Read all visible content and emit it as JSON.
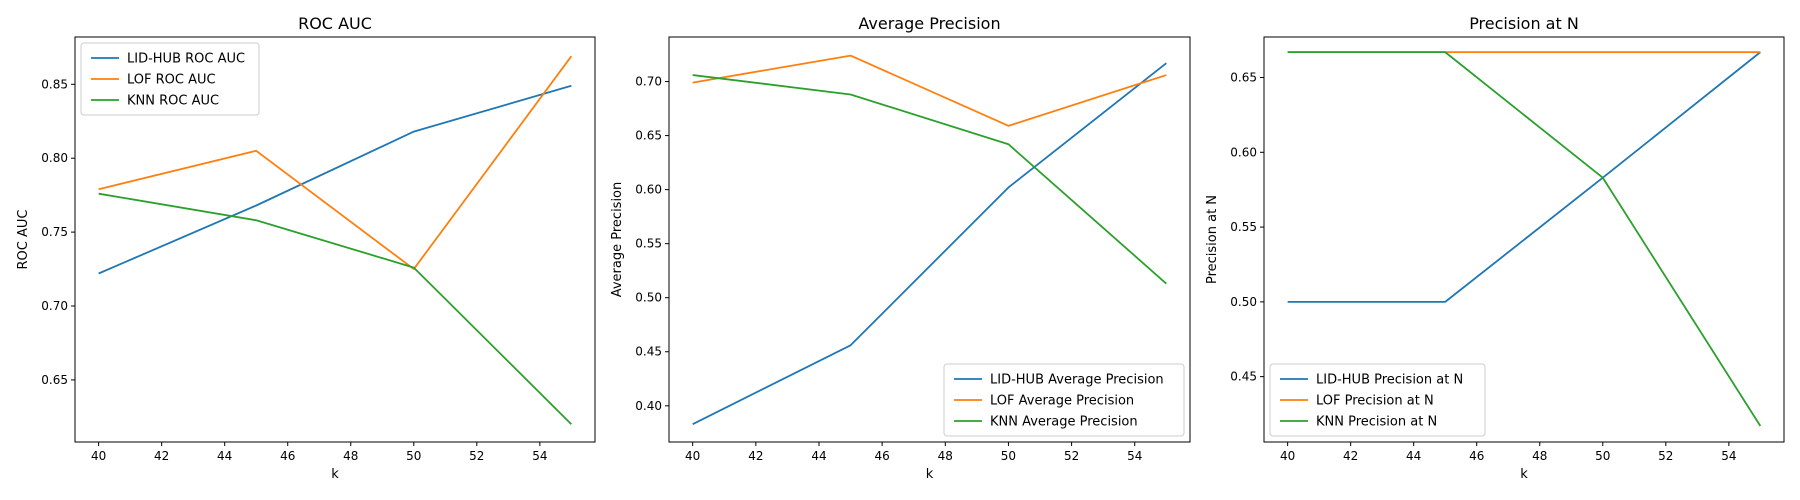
{
  "colors": {
    "blue": "#1f77b4",
    "orange": "#ff7f0e",
    "green": "#2ca02c"
  },
  "chart_data": [
    {
      "type": "line",
      "title": "ROC AUC",
      "xlabel": "k",
      "ylabel": "ROC AUC",
      "x": [
        40,
        45,
        50,
        55
      ],
      "xlim": [
        39.25,
        55.75
      ],
      "ylim": [
        0.608,
        0.882
      ],
      "xticks": [
        40,
        42,
        44,
        46,
        48,
        50,
        52,
        54
      ],
      "yticks": [
        0.65,
        0.7,
        0.75,
        0.8,
        0.85
      ],
      "yticks_labels": [
        "0.65",
        "0.70",
        "0.75",
        "0.80",
        "0.85"
      ],
      "legend_position": "upper-left",
      "series": [
        {
          "name": "LID-HUB ROC AUC",
          "color": "#1f77b4",
          "values": [
            0.722,
            0.768,
            0.818,
            0.849
          ]
        },
        {
          "name": "LOF ROC AUC",
          "color": "#ff7f0e",
          "values": [
            0.779,
            0.805,
            0.725,
            0.869
          ]
        },
        {
          "name": "KNN ROC AUC",
          "color": "#2ca02c",
          "values": [
            0.776,
            0.758,
            0.726,
            0.62
          ]
        }
      ]
    },
    {
      "type": "line",
      "title": "Average Precision",
      "xlabel": "k",
      "ylabel": "Average Precision",
      "x": [
        40,
        45,
        50,
        55
      ],
      "xlim": [
        39.25,
        55.75
      ],
      "ylim": [
        0.3665,
        0.7412
      ],
      "xticks": [
        40,
        42,
        44,
        46,
        48,
        50,
        52,
        54
      ],
      "yticks": [
        0.4,
        0.45,
        0.5,
        0.55,
        0.6,
        0.65,
        0.7
      ],
      "yticks_labels": [
        "0.40",
        "0.45",
        "0.50",
        "0.55",
        "0.60",
        "0.65",
        "0.70"
      ],
      "legend_position": "lower-right",
      "series": [
        {
          "name": "LID-HUB Average Precision",
          "color": "#1f77b4",
          "values": [
            0.383,
            0.456,
            0.602,
            0.717
          ]
        },
        {
          "name": "LOF Average Precision",
          "color": "#ff7f0e",
          "values": [
            0.699,
            0.724,
            0.659,
            0.706
          ]
        },
        {
          "name": "KNN Average Precision",
          "color": "#2ca02c",
          "values": [
            0.706,
            0.688,
            0.642,
            0.513
          ]
        }
      ]
    },
    {
      "type": "line",
      "title": "Precision at N",
      "xlabel": "k",
      "ylabel": "Precision at N",
      "x": [
        40,
        45,
        50,
        55
      ],
      "xlim": [
        39.25,
        55.75
      ],
      "ylim": [
        0.4063,
        0.6771
      ],
      "xticks": [
        40,
        42,
        44,
        46,
        48,
        50,
        52,
        54
      ],
      "yticks": [
        0.45,
        0.5,
        0.55,
        0.6,
        0.65
      ],
      "yticks_labels": [
        "0.45",
        "0.50",
        "0.55",
        "0.60",
        "0.65"
      ],
      "legend_position": "lower-left",
      "series": [
        {
          "name": "LID-HUB Precision at N",
          "color": "#1f77b4",
          "values": [
            0.5,
            0.5,
            0.583,
            0.667
          ]
        },
        {
          "name": "LOF Precision at N",
          "color": "#ff7f0e",
          "values": [
            0.667,
            0.667,
            0.667,
            0.667
          ]
        },
        {
          "name": "KNN Precision at N",
          "color": "#2ca02c",
          "values": [
            0.667,
            0.667,
            0.583,
            0.417
          ]
        }
      ]
    }
  ]
}
